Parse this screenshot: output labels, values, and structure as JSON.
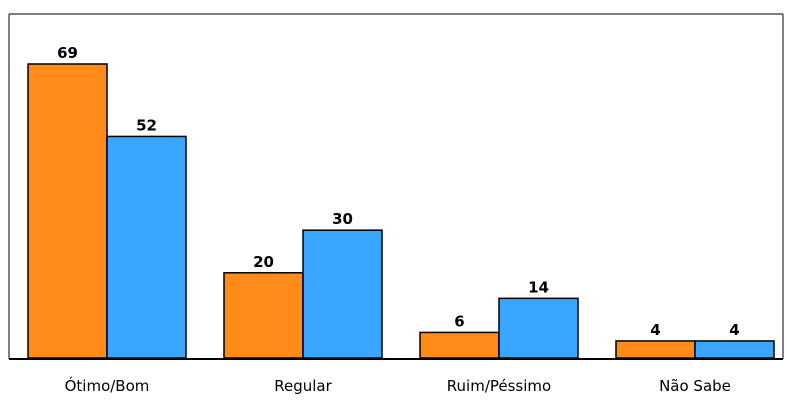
{
  "chart_data": {
    "type": "bar",
    "categories": [
      "Ótimo/Bom",
      "Regular",
      "Ruim/Péssimo",
      "Não Sabe"
    ],
    "series": [
      {
        "values": [
          69,
          20,
          6,
          4
        ]
      },
      {
        "values": [
          52,
          30,
          14,
          4
        ]
      }
    ],
    "ylim": [
      0,
      69
    ],
    "grid": false,
    "legend": "none",
    "colors": {
      "series": [
        "#ff8c19",
        "#39a7ff"
      ],
      "bar_outline": "#000000",
      "axis": "#000000",
      "background": "#ffffff"
    }
  }
}
